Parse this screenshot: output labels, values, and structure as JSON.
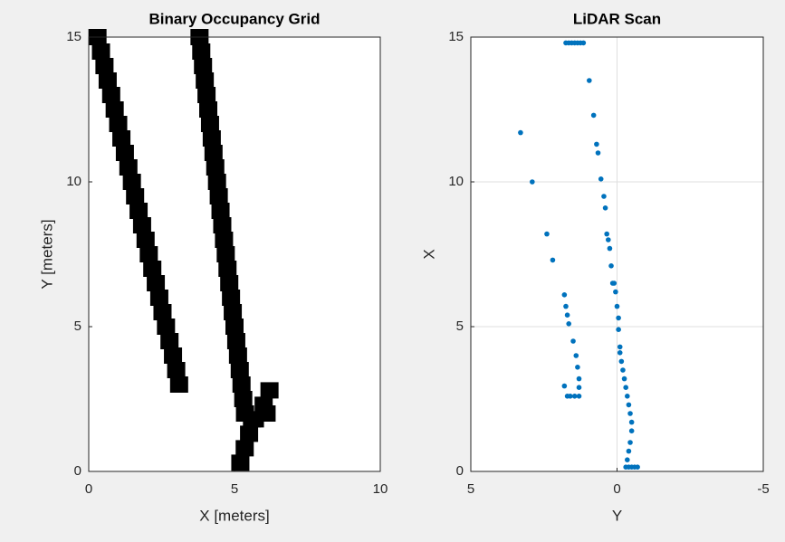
{
  "chart_data": [
    {
      "type": "occupancy",
      "title": "Binary Occupancy Grid",
      "xlabel": "X [meters]",
      "ylabel": "Y [meters]",
      "xlim": [
        0,
        10
      ],
      "ylim": [
        0,
        15
      ],
      "xticks": [
        0,
        5,
        10
      ],
      "yticks": [
        0,
        5,
        10,
        15
      ],
      "grid": false,
      "color": "#000000",
      "x": [
        0.3,
        0.42,
        0.54,
        0.65,
        0.77,
        0.89,
        1.01,
        1.12,
        1.24,
        1.36,
        1.48,
        1.59,
        1.71,
        1.83,
        1.95,
        2.06,
        2.18,
        2.3,
        2.42,
        2.53,
        2.65,
        2.77,
        2.89,
        3.0,
        3.1,
        3.8,
        3.86,
        3.92,
        3.98,
        4.04,
        4.1,
        4.16,
        4.22,
        4.28,
        4.34,
        4.4,
        4.46,
        4.52,
        4.58,
        4.64,
        4.7,
        4.76,
        4.82,
        4.88,
        4.94,
        5.0,
        5.06,
        5.12,
        5.18,
        5.24,
        5.3,
        5.36,
        5.2,
        5.35,
        5.5,
        5.6,
        5.7,
        6.0,
        6.2,
        6.1
      ],
      "y": [
        15,
        14.5,
        14,
        13.5,
        13,
        12.5,
        12,
        11.5,
        11,
        10.5,
        10,
        9.5,
        9,
        8.5,
        8,
        7.5,
        7,
        6.5,
        6,
        5.5,
        5,
        4.5,
        4,
        3.5,
        3,
        15,
        14.5,
        14,
        13.5,
        13,
        12.5,
        12,
        11.5,
        11,
        10.5,
        10,
        9.5,
        9,
        8.5,
        8,
        7.5,
        7,
        6.5,
        6,
        5.5,
        5,
        4.5,
        4,
        3.5,
        3,
        2.5,
        2,
        0.3,
        0.8,
        1.3,
        1.8,
        1.8,
        2.3,
        2.8,
        2.0
      ]
    },
    {
      "type": "scatter",
      "title": "LiDAR Scan",
      "xlabel": "Y",
      "ylabel": "X",
      "xlim": [
        5,
        -5
      ],
      "ylim": [
        0,
        15
      ],
      "xticks": [
        5,
        0,
        -5
      ],
      "yticks": [
        0,
        5,
        10,
        15
      ],
      "grid": true,
      "color": "#0072bd",
      "x": [
        1.75,
        1.65,
        1.55,
        1.45,
        1.35,
        1.25,
        1.15,
        0.95,
        0.8,
        0.7,
        0.65,
        0.55,
        0.45,
        0.4,
        0.35,
        0.3,
        0.25,
        0.2,
        0.15,
        0.1,
        0.05,
        0.0,
        -0.05,
        -0.05,
        -0.1,
        -0.1,
        -0.15,
        -0.2,
        -0.25,
        -0.3,
        -0.35,
        -0.4,
        -0.45,
        -0.5,
        -0.5,
        -0.45,
        -0.4,
        -0.35,
        -0.3,
        -0.4,
        -0.5,
        -0.6,
        -0.7,
        3.3,
        2.9,
        2.4,
        2.2,
        1.8,
        1.75,
        1.7,
        1.65,
        1.5,
        1.4,
        1.35,
        1.3,
        1.3,
        1.3,
        1.45,
        1.6,
        1.7,
        1.8
      ],
      "y": [
        14.8,
        14.8,
        14.8,
        14.8,
        14.8,
        14.8,
        14.8,
        13.5,
        12.3,
        11.3,
        11.0,
        10.1,
        9.5,
        9.1,
        8.2,
        8.0,
        7.7,
        7.1,
        6.5,
        6.5,
        6.2,
        5.7,
        5.3,
        4.9,
        4.3,
        4.1,
        3.8,
        3.5,
        3.2,
        2.9,
        2.6,
        2.3,
        2.0,
        1.7,
        1.4,
        1.0,
        0.7,
        0.4,
        0.15,
        0.15,
        0.15,
        0.15,
        0.15,
        11.7,
        10.0,
        8.2,
        7.3,
        6.1,
        5.7,
        5.4,
        5.1,
        4.5,
        4.0,
        3.6,
        3.2,
        2.9,
        2.6,
        2.6,
        2.6,
        2.6,
        2.95
      ]
    }
  ]
}
